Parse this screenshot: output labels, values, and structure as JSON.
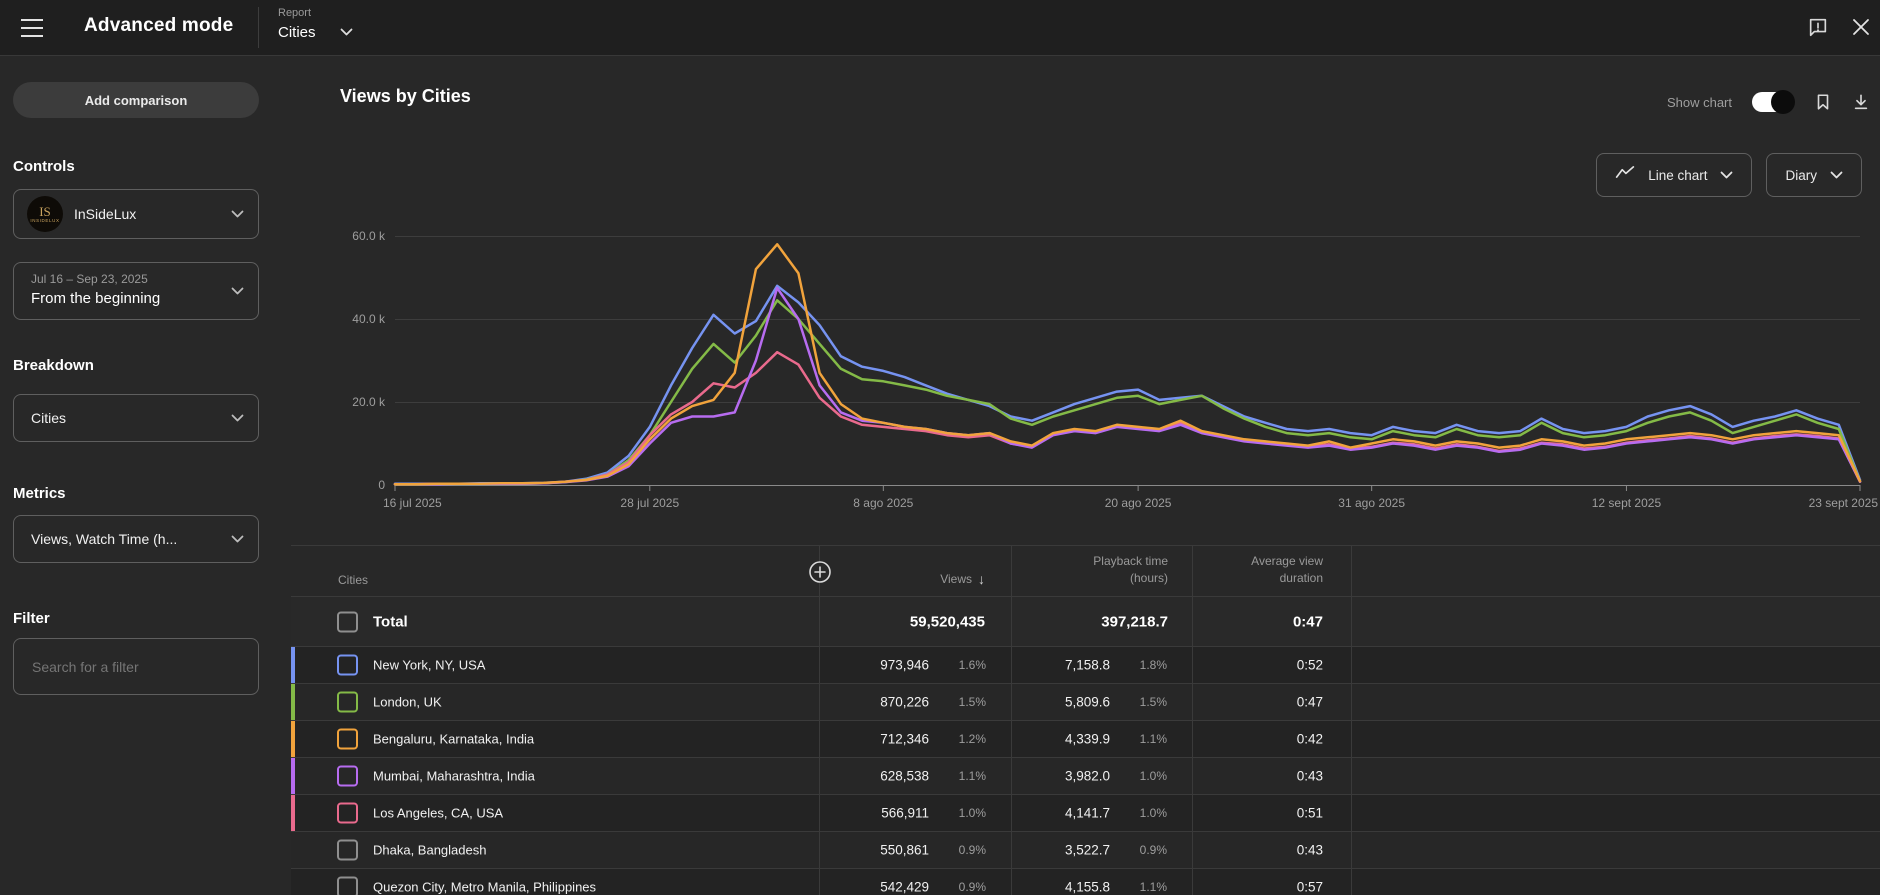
{
  "topbar": {
    "title": "Advanced mode",
    "report_label": "Report",
    "report_value": "Cities"
  },
  "sidebar": {
    "add_comparison": "Add comparison",
    "controls_heading": "Controls",
    "channel": {
      "name": "InSideLux",
      "monogram": "IS",
      "logo_caption": "INSIDELUX"
    },
    "date_range": {
      "range": "Jul 16 – Sep 23, 2025",
      "preset": "From the beginning"
    },
    "breakdown_heading": "Breakdown",
    "breakdown_value": "Cities",
    "metrics_heading": "Metrics",
    "metrics_value": "Views, Watch Time (h...",
    "filter_heading": "Filter",
    "filter_placeholder": "Search for a filter"
  },
  "chart_header": {
    "title": "Views by Cities",
    "show_chart_label": "Show chart",
    "show_chart_on": true,
    "chart_type": "Line chart",
    "granularity": "Diary"
  },
  "icons": {
    "sort_desc": "↓",
    "hamburger": "menu",
    "close": "x",
    "feedback": "speech-bubble-exclamation",
    "chevron_down": "v",
    "bookmark": "save-report",
    "download": "export",
    "line_chart": "zigzag",
    "add_column": "plus-circle"
  },
  "chart_data": {
    "type": "line",
    "title": "Views by Cities",
    "grid": true,
    "legend_position": "none",
    "unit": "daily views (thousands)",
    "ylim_k": [
      0,
      60
    ],
    "y_ticks": [
      [
        0,
        "0"
      ],
      [
        20,
        "20.0 k"
      ],
      [
        40,
        "40.0 k"
      ],
      [
        60,
        "60.0 k"
      ]
    ],
    "x_ticks": [
      [
        0,
        "16 jul 2025"
      ],
      [
        12,
        "28 jul 2025"
      ],
      [
        23,
        "8 ago 2025"
      ],
      [
        35,
        "20 ago 2025"
      ],
      [
        46,
        "31 ago 2025"
      ],
      [
        58,
        "12 sept 2025"
      ],
      [
        69,
        "23 sept 2025"
      ]
    ],
    "days_total": 69,
    "draw_order": [
      0,
      1,
      4,
      3,
      2
    ],
    "series": [
      {
        "name": "New York, NY, USA",
        "color": "#7693f1",
        "values_k": [
          0.3,
          0.3,
          0.3,
          0.3,
          0.4,
          0.4,
          0.4,
          0.5,
          0.8,
          1.5,
          3,
          7,
          14,
          24,
          33,
          41,
          36.5,
          39.5,
          48,
          44,
          38.5,
          31,
          28.5,
          27.5,
          26,
          24,
          22,
          20.5,
          19,
          16.5,
          15.5,
          17.5,
          19.5,
          21,
          22.5,
          23,
          20.5,
          21,
          21.5,
          19,
          16.5,
          15,
          13.5,
          13,
          13.5,
          12.5,
          12,
          14,
          13,
          12.5,
          14.5,
          13,
          12.5,
          13,
          16,
          13.5,
          12.5,
          13,
          14,
          16.5,
          18,
          19,
          17,
          14,
          15.5,
          16.5,
          18,
          16,
          14.5,
          1.2
        ]
      },
      {
        "name": "London, UK",
        "color": "#84ba47",
        "values_k": [
          0.2,
          0.2,
          0.2,
          0.3,
          0.3,
          0.3,
          0.3,
          0.4,
          0.7,
          1.3,
          2.5,
          6,
          12,
          20,
          28,
          34,
          29.5,
          36,
          44.5,
          40,
          34,
          28,
          25.5,
          25,
          24,
          23,
          21.5,
          20.5,
          19.5,
          16,
          14.5,
          16.5,
          18,
          19.5,
          21,
          21.5,
          19.5,
          20.5,
          21.5,
          18.5,
          16,
          14,
          12.5,
          12,
          12.5,
          11.5,
          11,
          13,
          12,
          11.5,
          13.5,
          12,
          11.5,
          12,
          15,
          12.5,
          11.5,
          12,
          13,
          15,
          16.5,
          17.5,
          15.5,
          12.5,
          14,
          15.5,
          17,
          15,
          13.5,
          0.9
        ]
      },
      {
        "name": "Bengaluru, Karnataka, India",
        "color": "#f1a33c",
        "values_k": [
          0.2,
          0.2,
          0.3,
          0.3,
          0.3,
          0.4,
          0.4,
          0.5,
          0.8,
          1.2,
          2.2,
          5,
          11,
          16,
          19,
          20.5,
          27,
          52,
          58,
          51,
          27,
          19.5,
          16,
          15,
          14,
          13.5,
          12.5,
          12,
          12.5,
          10.5,
          9.5,
          12.5,
          13.5,
          13,
          14.5,
          14,
          13.5,
          15.5,
          13,
          12,
          11,
          10.5,
          10,
          9.5,
          10.5,
          9,
          10,
          11,
          10.5,
          9.5,
          10.5,
          10,
          9,
          9.5,
          11,
          10.5,
          9.5,
          10,
          11,
          11.5,
          12,
          12.5,
          12,
          11,
          12,
          12.5,
          13,
          12.5,
          12,
          0.9
        ]
      },
      {
        "name": "Mumbai, Maharashtra, India",
        "color": "#b76cf0",
        "values_k": [
          0.2,
          0.2,
          0.2,
          0.3,
          0.3,
          0.3,
          0.3,
          0.4,
          0.7,
          1.1,
          2,
          4.5,
          10,
          15,
          16.5,
          16.5,
          17.5,
          30,
          47.5,
          40,
          24,
          17.5,
          15.5,
          15,
          14,
          13.5,
          12.5,
          12,
          12.5,
          10,
          9,
          12,
          13,
          12.5,
          14,
          13.5,
          13,
          14.5,
          12.5,
          11.5,
          10.5,
          10,
          9.5,
          9,
          9.5,
          8.5,
          9,
          10,
          9.5,
          8.5,
          9.5,
          9,
          8,
          8.5,
          10,
          9.5,
          8.5,
          9,
          10,
          10.5,
          11,
          11.5,
          11,
          10,
          11,
          11.5,
          12,
          11.5,
          11,
          0.8
        ]
      },
      {
        "name": "Los Angeles, CA, USA",
        "color": "#e96a8d",
        "values_k": [
          0.2,
          0.2,
          0.3,
          0.3,
          0.3,
          0.3,
          0.4,
          0.4,
          0.8,
          1.2,
          2.5,
          5.5,
          12,
          17,
          20,
          24.5,
          23.5,
          27,
          32,
          29,
          21,
          16.5,
          14.5,
          14,
          13.5,
          13,
          12,
          11.5,
          12,
          10,
          9.2,
          12.2,
          13.2,
          12.8,
          14.2,
          13.8,
          13.2,
          15,
          12.8,
          11.8,
          10.8,
          10.2,
          9.8,
          9.2,
          9.8,
          8.8,
          9.2,
          10.2,
          9.8,
          8.8,
          9.8,
          9.2,
          8.2,
          8.8,
          10.2,
          9.8,
          8.8,
          9.2,
          10.2,
          10.8,
          11.2,
          11.8,
          11.2,
          10.2,
          11.2,
          11.8,
          12.2,
          11.8,
          11.2,
          0.8
        ]
      }
    ]
  },
  "table": {
    "header": {
      "cities": "Cities",
      "views": "Views",
      "playback": "Playback time\n(hours)",
      "duration": "Average view\nduration"
    },
    "sort": {
      "column": "Views",
      "direction": "desc"
    },
    "total": {
      "label": "Total",
      "views": "59,520,435",
      "playback": "397,218.7",
      "avg_duration": "0:47"
    },
    "rows": [
      {
        "city": "New York, NY, USA",
        "color": "#7693f1",
        "views": "973,946",
        "views_pct": "1.6%",
        "playback": "7,158.8",
        "playback_pct": "1.8%",
        "avg_duration": "0:52"
      },
      {
        "city": "London, UK",
        "color": "#84ba47",
        "views": "870,226",
        "views_pct": "1.5%",
        "playback": "5,809.6",
        "playback_pct": "1.5%",
        "avg_duration": "0:47"
      },
      {
        "city": "Bengaluru, Karnataka, India",
        "color": "#f1a33c",
        "views": "712,346",
        "views_pct": "1.2%",
        "playback": "4,339.9",
        "playback_pct": "1.1%",
        "avg_duration": "0:42"
      },
      {
        "city": "Mumbai, Maharashtra, India",
        "color": "#b76cf0",
        "views": "628,538",
        "views_pct": "1.1%",
        "playback": "3,982.0",
        "playback_pct": "1.0%",
        "avg_duration": "0:43"
      },
      {
        "city": "Los Angeles, CA, USA",
        "color": "#e96a8d",
        "views": "566,911",
        "views_pct": "1.0%",
        "playback": "4,141.7",
        "playback_pct": "1.0%",
        "avg_duration": "0:51"
      },
      {
        "city": "Dhaka, Bangladesh",
        "color": null,
        "views": "550,861",
        "views_pct": "0.9%",
        "playback": "3,522.7",
        "playback_pct": "0.9%",
        "avg_duration": "0:43"
      },
      {
        "city": "Quezon City, Metro Manila, Philippines",
        "color": null,
        "views": "542,429",
        "views_pct": "0.9%",
        "playback": "4,155.8",
        "playback_pct": "1.1%",
        "avg_duration": "0:57"
      }
    ]
  }
}
